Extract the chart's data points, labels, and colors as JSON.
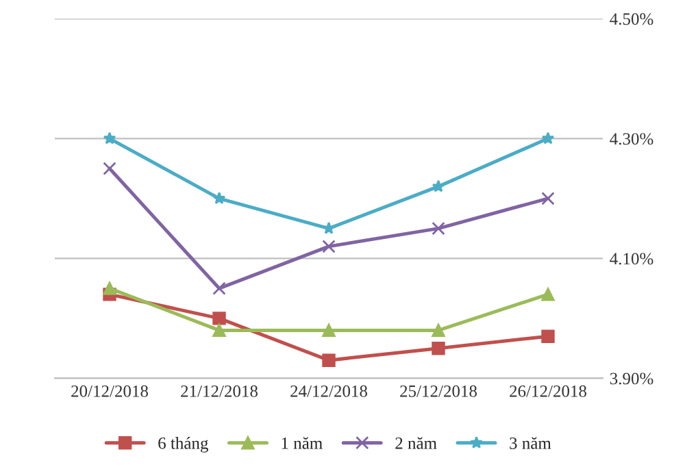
{
  "chart_data": {
    "type": "line",
    "categories": [
      "20/12/2018",
      "21/12/2018",
      "24/12/2018",
      "25/12/2018",
      "26/12/2018"
    ],
    "series": [
      {
        "name": "6 tháng",
        "color": "#c0504d",
        "marker": "square",
        "values": [
          4.04,
          4.0,
          3.93,
          3.95,
          3.97
        ]
      },
      {
        "name": "1 năm",
        "color": "#9bbb59",
        "marker": "triangle",
        "values": [
          4.05,
          3.98,
          3.98,
          3.98,
          4.04
        ]
      },
      {
        "name": "2 năm",
        "color": "#8064a2",
        "marker": "cross",
        "values": [
          4.25,
          4.05,
          4.12,
          4.15,
          4.2
        ]
      },
      {
        "name": "3 năm",
        "color": "#4bacc6",
        "marker": "star",
        "values": [
          4.3,
          4.2,
          4.15,
          4.22,
          4.3
        ]
      }
    ],
    "ylim": [
      3.9,
      4.5
    ],
    "yticks": [
      {
        "value": 3.9,
        "label": "3.90%"
      },
      {
        "value": 4.1,
        "label": "4.10%"
      },
      {
        "value": 4.3,
        "label": "4.30%"
      },
      {
        "value": 4.5,
        "label": "4.50%"
      }
    ],
    "grid": "y",
    "legend": "bottom",
    "line_style": "solid"
  }
}
